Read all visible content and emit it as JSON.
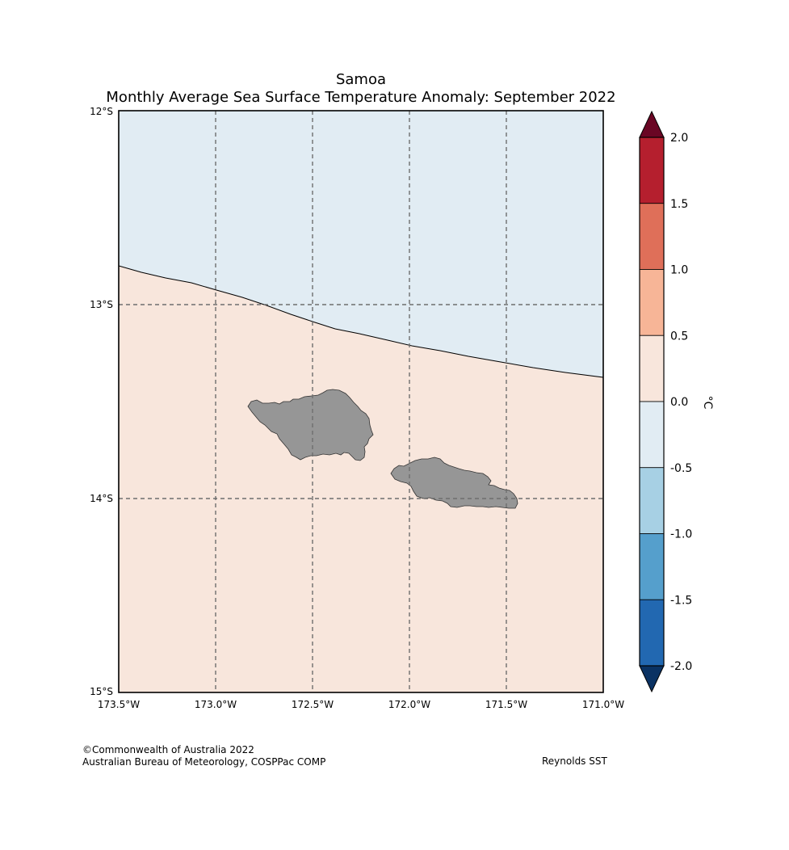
{
  "title": {
    "line1": "Samoa",
    "line2": "Monthly Average Sea Surface Temperature Anomaly: September 2022"
  },
  "map": {
    "lon_range": [
      -173.5,
      -171.0
    ],
    "lat_range": [
      -15.0,
      -12.0
    ],
    "lon_ticks": [
      "173.5°W",
      "173.0°W",
      "172.5°W",
      "172.0°W",
      "171.5°W",
      "171.0°W"
    ],
    "lat_ticks": [
      "12°S",
      "13°S",
      "14°S",
      "15°S"
    ],
    "gridlines": "dashed",
    "regions": [
      {
        "name": "cooler",
        "anomaly_range": [
          -0.5,
          0.0
        ],
        "color": "#e1ecf3"
      },
      {
        "name": "warmer",
        "anomaly_range": [
          0.0,
          0.5
        ],
        "color": "#f8e6dc"
      }
    ],
    "land_color": "#969696",
    "islands": [
      "Savai'i",
      "Upolu"
    ]
  },
  "colorbar": {
    "label": "°C",
    "ticks": [
      "2.0",
      "1.5",
      "1.0",
      "0.5",
      "0.0",
      "-0.5",
      "-1.0",
      "-1.5",
      "-2.0"
    ],
    "bins": [
      {
        "range": [
          1.5,
          2.0
        ],
        "color": "#b51f2e"
      },
      {
        "range": [
          1.0,
          1.5
        ],
        "color": "#df6f59"
      },
      {
        "range": [
          0.5,
          1.0
        ],
        "color": "#f7b597"
      },
      {
        "range": [
          0.0,
          0.5
        ],
        "color": "#f8e6dc"
      },
      {
        "range": [
          -0.5,
          0.0
        ],
        "color": "#e1ecf3"
      },
      {
        "range": [
          -1.0,
          -0.5
        ],
        "color": "#a7d0e4"
      },
      {
        "range": [
          -1.5,
          -1.0
        ],
        "color": "#559fcc"
      },
      {
        "range": [
          -2.0,
          -1.5
        ],
        "color": "#2268b1"
      }
    ],
    "over_color": "#6a0624",
    "under_color": "#0a3263"
  },
  "footer": {
    "copyright": "©Commonwealth of Australia 2022",
    "agency": "Australian Bureau of Meteorology, COSPPac COMP",
    "dataset": "Reynolds SST"
  }
}
